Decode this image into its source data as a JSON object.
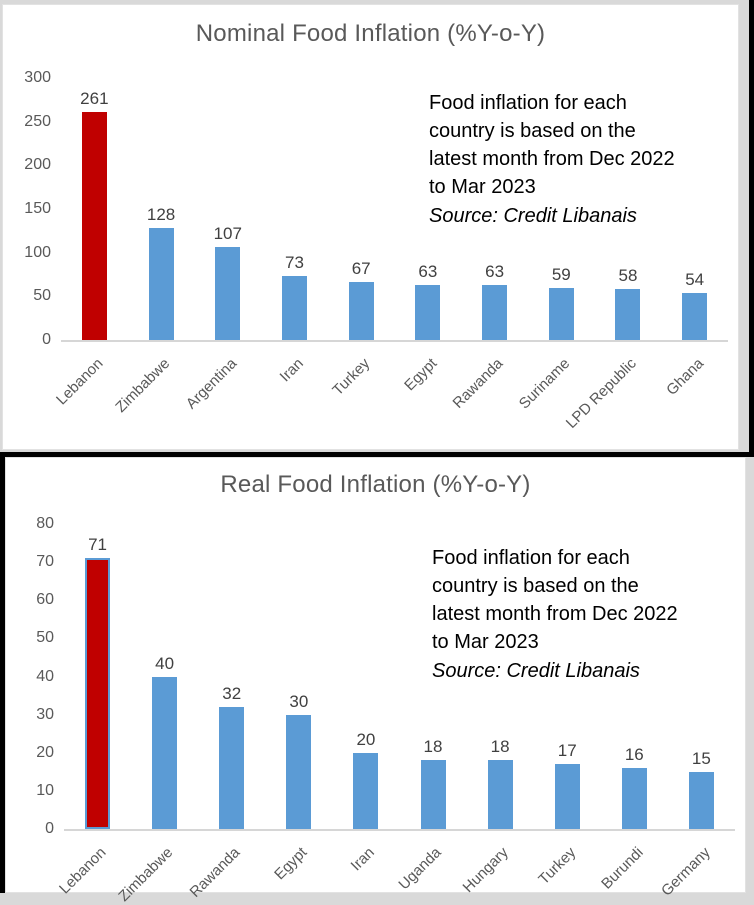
{
  "colors": {
    "bar_blue": "#5b9bd5",
    "highlight_red": "#c00000",
    "title_gray": "#595959",
    "axis_label_gray": "#595959",
    "value_label_gray": "#404040",
    "axis_line_gray": "#d6d6d6"
  },
  "chart_data": [
    {
      "type": "bar",
      "title": "Nominal Food Inflation (%Y-o-Y)",
      "categories": [
        "Lebanon",
        "Zimbabwe",
        "Argentina",
        "Iran",
        "Turkey",
        "Egypt",
        "Rawanda",
        "Suriname",
        "LPD Republic",
        "Ghana"
      ],
      "values": [
        261,
        128,
        107,
        73,
        67,
        63,
        63,
        59,
        58,
        54
      ],
      "ylim": [
        0,
        300
      ],
      "ytick_step": 50,
      "grid": false,
      "legend": "none",
      "bar_color": "#5b9bd5",
      "highlight": {
        "index": 0,
        "color": "#c00000"
      },
      "annotation_lines": [
        "Food inflation for each",
        "country is based on the",
        "latest month from Dec 2022",
        "to Mar 2023"
      ],
      "source": "Source: Credit Libanais"
    },
    {
      "type": "bar",
      "title": "Real Food Inflation (%Y-o-Y)",
      "categories": [
        "Lebanon",
        "Zimbabwe",
        "Rawanda",
        "Egypt",
        "Iran",
        "Uganda",
        "Hungary",
        "Turkey",
        "Burundi",
        "Germany"
      ],
      "values": [
        71,
        40,
        32,
        30,
        20,
        18,
        18,
        17,
        16,
        15
      ],
      "ylim": [
        0,
        80
      ],
      "ytick_step": 10,
      "grid": false,
      "legend": "none",
      "bar_color": "#5b9bd5",
      "highlight": {
        "index": 0,
        "color": "#c00000",
        "border": "#5b9bd5"
      },
      "annotation_lines": [
        "Food inflation for each",
        "country is based on the",
        "latest month from Dec 2022",
        "to Mar 2023"
      ],
      "source": "Source: Credit Libanais"
    }
  ]
}
